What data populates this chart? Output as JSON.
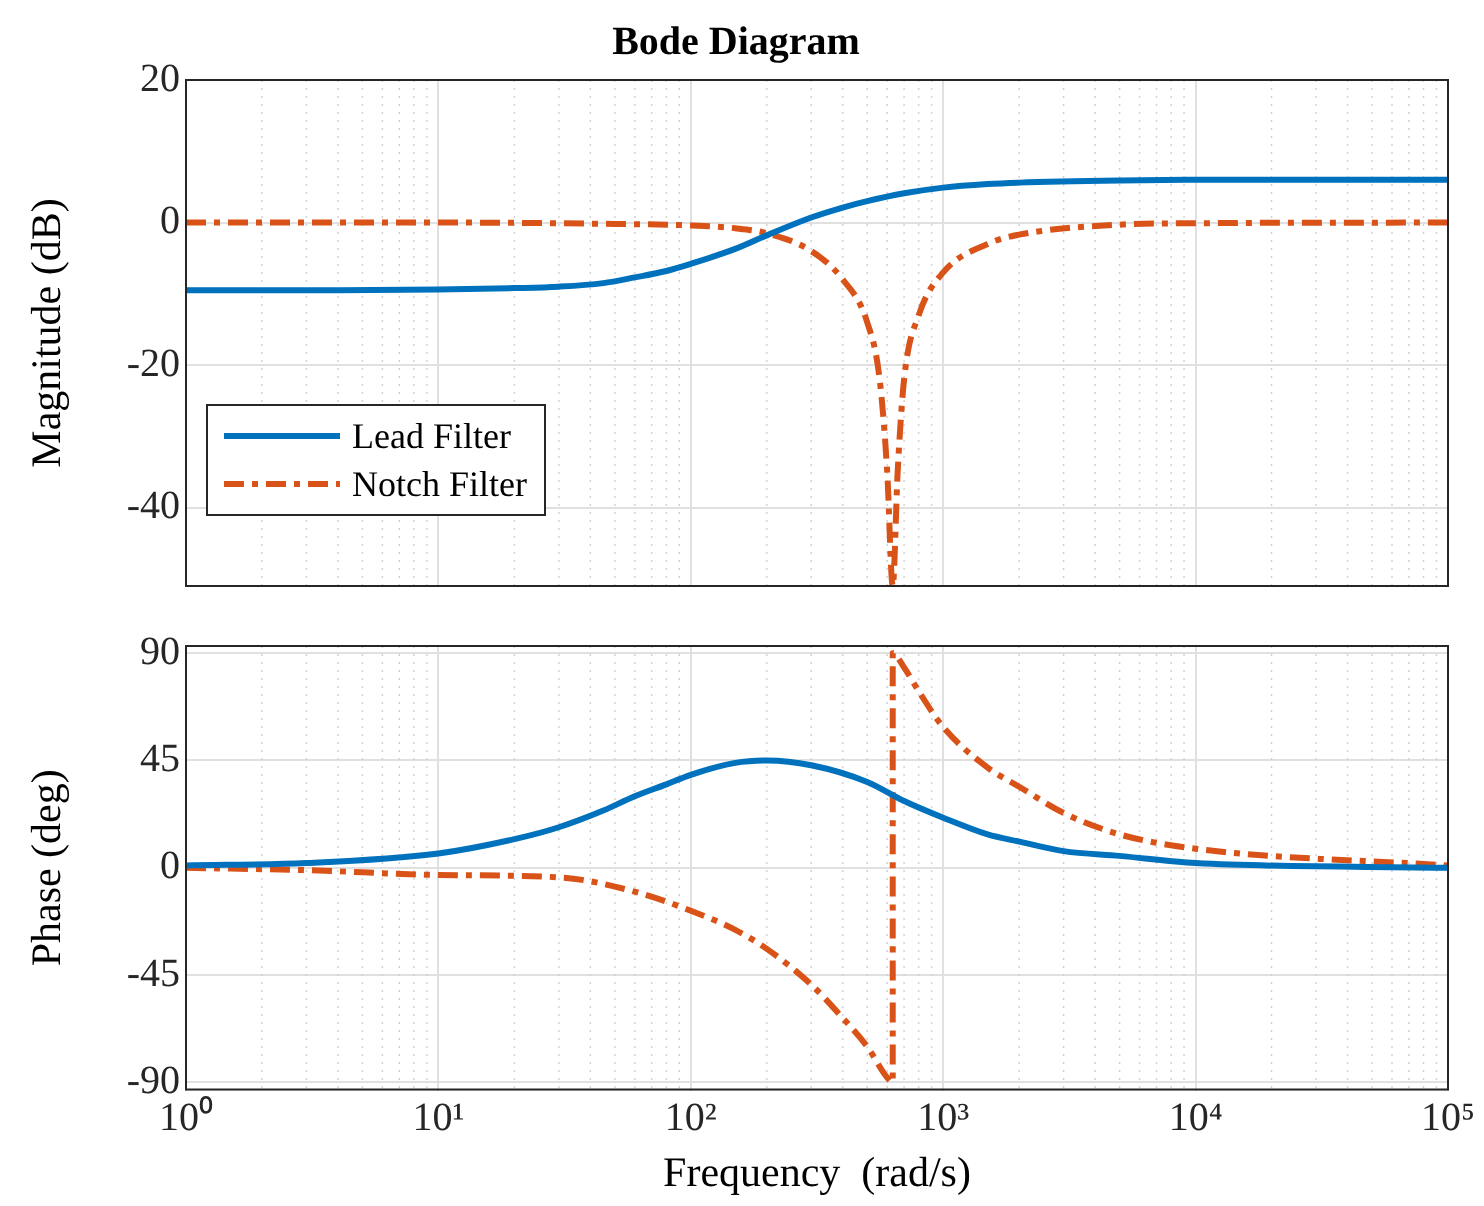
{
  "chart_data": [
    {
      "type": "line",
      "title": "Bode Diagram",
      "ylabel": "Magnitude (dB)",
      "log": "x",
      "grid": true,
      "legend": "bottom left",
      "tick_labels": "y",
      "xlim": [
        1,
        100000
      ],
      "xticks": [
        {
          "value": 1,
          "label": null
        },
        {
          "value": 10,
          "label": null
        },
        {
          "value": 100,
          "label": null
        },
        {
          "value": 1000,
          "label": null
        },
        {
          "value": 10000,
          "label": null
        },
        {
          "value": 100000,
          "label": null
        }
      ],
      "ylim": [
        -51,
        20
      ],
      "yticks": [
        -40,
        -20,
        0,
        20
      ],
      "series": [
        {
          "name": "Lead Filter",
          "color": "#0072bd",
          "line_style": "solid",
          "x": [
            1,
            3,
            10,
            20,
            30,
            45,
            60,
            80,
            100,
            150,
            200,
            300,
            400,
            500,
            700,
            1000,
            1500,
            2000,
            5000,
            10000,
            100000
          ],
          "values": [
            -9.5,
            -9.5,
            -9.4,
            -9.2,
            -9.0,
            -8.5,
            -7.7,
            -6.8,
            -5.8,
            -3.7,
            -1.8,
            0.7,
            2.1,
            3.0,
            4.1,
            4.9,
            5.4,
            5.6,
            5.9,
            6,
            6
          ]
        },
        {
          "name": "Notch Filter",
          "color": "#d95319",
          "line_style": "dashed",
          "x": [
            1,
            10,
            50,
            100,
            150,
            200,
            300,
            400,
            500,
            560,
            600,
            631,
            660,
            700,
            800,
            1000,
            1500,
            2000,
            5000,
            10000,
            100000
          ],
          "values": [
            0,
            0,
            -0.2,
            -0.4,
            -0.8,
            -1.5,
            -4,
            -8,
            -14,
            -22,
            -35,
            -51,
            -35,
            -22,
            -13,
            -7,
            -3,
            -1.7,
            -0.3,
            -0.1,
            0
          ]
        }
      ]
    },
    {
      "type": "line",
      "xlabel": "Frequency  (rad/s)",
      "ylabel": "Phase (deg)",
      "log": "x",
      "grid": true,
      "legend": false,
      "xlim": [
        1,
        100000
      ],
      "xticks": [
        {
          "value": 1,
          "label": "10⁰"
        },
        {
          "value": 10,
          "label": "10¹"
        },
        {
          "value": 100,
          "label": "10²"
        },
        {
          "value": 1000,
          "label": "10³"
        },
        {
          "value": 10000,
          "label": "10⁴"
        },
        {
          "value": 100000,
          "label": "10⁵"
        }
      ],
      "ylim": [
        -93,
        93
      ],
      "yticks": [
        -90,
        -45,
        0,
        45,
        90
      ],
      "series": [
        {
          "color": "#0072bd",
          "line_style": "solid",
          "x": [
            1,
            3,
            10,
            20,
            30,
            45,
            60,
            80,
            100,
            150,
            200,
            300,
            500,
            700,
            1000,
            1500,
            2000,
            3000,
            5000,
            10000,
            100000
          ],
          "values": [
            1,
            2,
            6,
            12,
            17,
            24,
            30,
            35,
            39,
            44,
            45,
            43,
            36,
            28,
            21,
            14,
            11,
            7,
            5,
            2,
            0
          ]
        },
        {
          "color": "#d95319",
          "line_style": "dashed",
          "x": [
            1,
            3,
            10,
            30,
            60,
            100,
            150,
            200,
            300,
            400,
            500,
            600,
            631,
            631,
            700,
            800,
            1000,
            1500,
            2000,
            3000,
            5000,
            10000,
            100000
          ],
          "values": [
            0,
            -1,
            -3,
            -4,
            -10,
            -18,
            -26,
            -34,
            -49,
            -63,
            -75,
            -88,
            -90,
            90,
            84,
            74,
            59,
            42,
            34,
            23,
            14,
            8,
            1
          ]
        }
      ]
    }
  ]
}
